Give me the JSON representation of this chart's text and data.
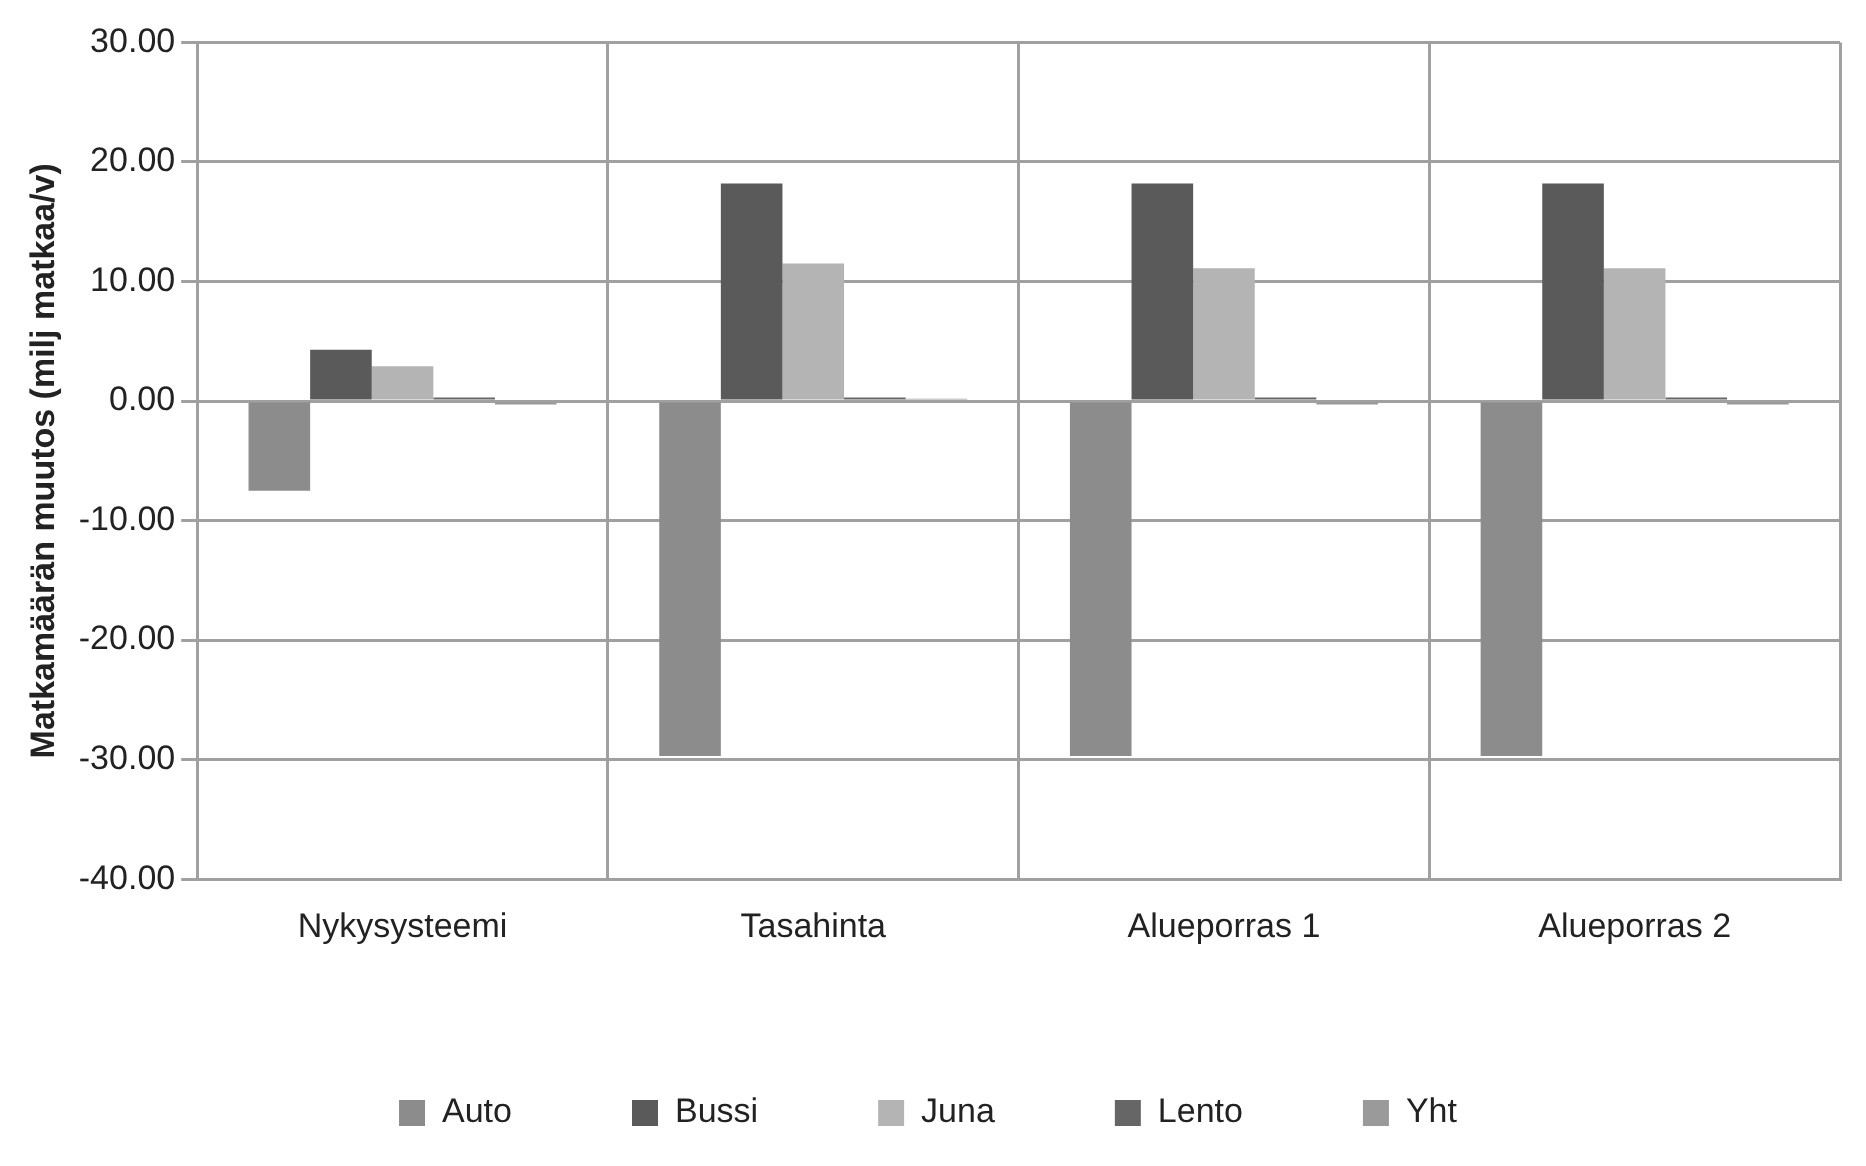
{
  "chart_data": {
    "type": "bar",
    "ylabel": "Matkamäärän muutos (milj matkaa/v)",
    "categories": [
      "Nykysysteemi",
      "Tasahinta",
      "Alueporras 1",
      "Alueporras 2"
    ],
    "series": [
      {
        "name": "Auto",
        "color": "#8c8c8c",
        "values": [
          -7.5,
          -29.7,
          -29.7,
          -29.7
        ]
      },
      {
        "name": "Bussi",
        "color": "#5a5a5a",
        "values": [
          4.3,
          18.2,
          18.2,
          18.2
        ]
      },
      {
        "name": "Juna",
        "color": "#b4b4b4",
        "values": [
          2.9,
          11.5,
          11.1,
          11.1
        ]
      },
      {
        "name": "Lento",
        "color": "#666666",
        "values": [
          0.3,
          0.3,
          0.3,
          0.3
        ]
      },
      {
        "name": "Yht",
        "color": "#9a9a9a",
        "values": [
          -0.3,
          0.2,
          -0.3,
          -0.3
        ]
      }
    ],
    "ylim": [
      -40,
      30
    ],
    "yticks": [
      {
        "value": -40,
        "label": "-40.00"
      },
      {
        "value": -30,
        "label": "-30.00"
      },
      {
        "value": -20,
        "label": "-20.00"
      },
      {
        "value": -10,
        "label": "-10.00"
      },
      {
        "value": 0,
        "label": "0.00"
      },
      {
        "value": 10,
        "label": "10.00"
      },
      {
        "value": 20,
        "label": "20.00"
      },
      {
        "value": 30,
        "label": "30.00"
      }
    ],
    "grid": true,
    "legend": "bottom"
  }
}
